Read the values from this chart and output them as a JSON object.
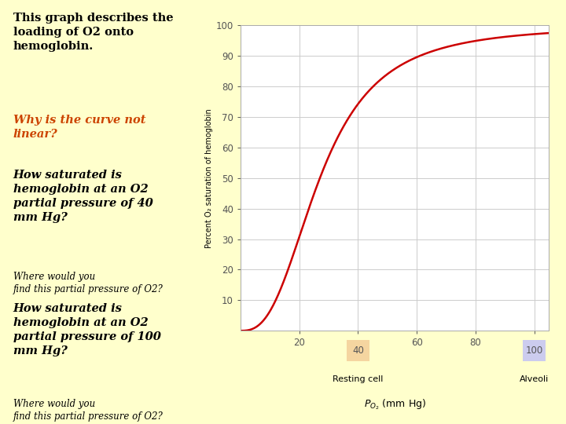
{
  "background_color": "#ffffcc",
  "plot_bg_color": "#ffffff",
  "curve_color": "#cc0000",
  "curve_linewidth": 1.8,
  "xlim": [
    0,
    105
  ],
  "ylim": [
    0,
    100
  ],
  "xticks": [
    20,
    40,
    60,
    80,
    100
  ],
  "yticks": [
    10,
    20,
    30,
    40,
    50,
    60,
    70,
    80,
    90,
    100
  ],
  "ylabel": "Percent O₂ saturation of hemoglobin",
  "resting_cell_label": "Resting cell",
  "alveoli_label": "Alveoli",
  "resting_box_color": "#f5d5a0",
  "alveoli_box_color": "#ccccee",
  "grid_color": "#cccccc",
  "tick_color": "#555555",
  "hill_p50": 27,
  "hill_n": 2.7
}
